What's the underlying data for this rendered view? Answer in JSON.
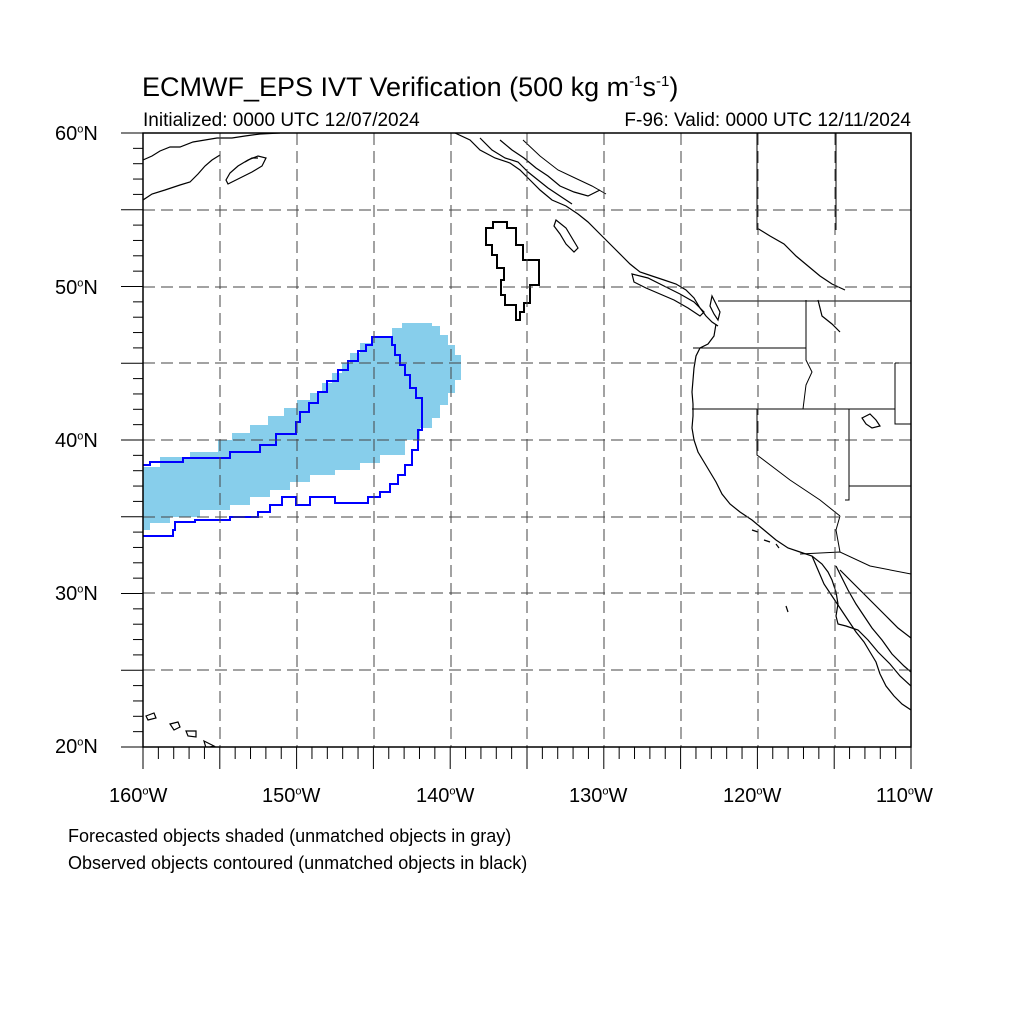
{
  "header": {
    "title_main": "ECMWF_EPS IVT Verification (500 kg m",
    "title_exp1": "-1",
    "title_mid": "s",
    "title_exp2": "-1",
    "title_end": ")",
    "initialized": "Initialized: 0000 UTC 12/07/2024",
    "valid": "F-96: Valid: 0000 UTC 12/11/2024"
  },
  "axes": {
    "lat_labels": [
      {
        "num": "60",
        "hem": "N"
      },
      {
        "num": "50",
        "hem": "N"
      },
      {
        "num": "40",
        "hem": "N"
      },
      {
        "num": "30",
        "hem": "N"
      },
      {
        "num": "20",
        "hem": "N"
      }
    ],
    "lon_labels": [
      {
        "num": "160",
        "hem": "W"
      },
      {
        "num": "150",
        "hem": "W"
      },
      {
        "num": "140",
        "hem": "W"
      },
      {
        "num": "130",
        "hem": "W"
      },
      {
        "num": "120",
        "hem": "W"
      },
      {
        "num": "110",
        "hem": "W"
      }
    ],
    "degree_symbol": "o"
  },
  "legend_notes": {
    "forecast": "Forecasted objects shaded (unmatched objects in gray)",
    "observed": "Observed objects contoured (unmatched objects in black)"
  },
  "colors": {
    "forecast_fill": "#87ceeb",
    "matched_contour": "#0000ff",
    "unmatched_contour": "#000000",
    "grid": "#444444"
  }
}
